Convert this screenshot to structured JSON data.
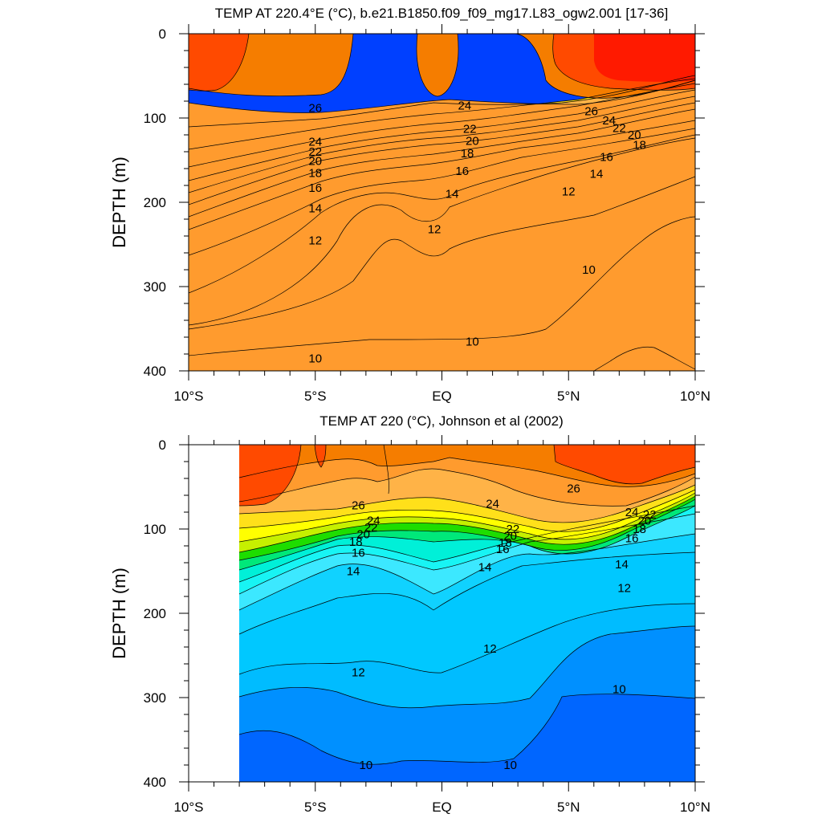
{
  "chart_data": [
    {
      "type": "heatmap",
      "subtype": "filled-contour",
      "title": "TEMP AT 220.4°E (°C), b.e21.B1850.f09_f09_mg17.L83_ogw2.001 [17-36]",
      "ylabel": "DEPTH (m)",
      "x_tick_labels": [
        "10°S",
        "5°S",
        "EQ",
        "5°N",
        "10°N"
      ],
      "x_ticks": [
        -10,
        -5,
        0,
        5,
        10
      ],
      "y_tick_labels": [
        "0",
        "100",
        "200",
        "300",
        "400"
      ],
      "y_ticks": [
        0,
        100,
        200,
        300,
        400
      ],
      "xlim": [
        -10,
        10
      ],
      "ylim": [
        0,
        400
      ],
      "y_inverted": true,
      "contour_interval": 1,
      "colors": {
        "t28": "#ff1a00",
        "t27": "#ff4a00",
        "t26": "#f57d00",
        "t25": "#ff9b2e",
        "t24": "#ffb347",
        "t22": "#ffe01a",
        "t20": "#ffff00",
        "t19": "#c6f000",
        "t18": "#1edd00",
        "t17": "#00e87a",
        "t16": "#00f0d8",
        "t15": "#18f4f4",
        "t14": "#3ce8ff",
        "t13": "#10d2ff",
        "t12": "#00bcff",
        "t11": "#0090ff",
        "t10": "#0066ff",
        "t9": "#0040ff"
      },
      "contour_labels": [
        {
          "text": "26",
          "lat": -5.0,
          "depth": 88
        },
        {
          "text": "24",
          "lat": -5.0,
          "depth": 128
        },
        {
          "text": "22",
          "lat": -5.0,
          "depth": 140
        },
        {
          "text": "20",
          "lat": -5.0,
          "depth": 151
        },
        {
          "text": "18",
          "lat": -5.0,
          "depth": 165
        },
        {
          "text": "16",
          "lat": -5.0,
          "depth": 183
        },
        {
          "text": "14",
          "lat": -5.0,
          "depth": 207
        },
        {
          "text": "12",
          "lat": -5.0,
          "depth": 245
        },
        {
          "text": "10",
          "lat": -5.0,
          "depth": 385
        },
        {
          "text": "24",
          "lat": 0.9,
          "depth": 85
        },
        {
          "text": "22",
          "lat": 1.1,
          "depth": 113
        },
        {
          "text": "20",
          "lat": 1.2,
          "depth": 127
        },
        {
          "text": "18",
          "lat": 1.0,
          "depth": 142
        },
        {
          "text": "16",
          "lat": 0.8,
          "depth": 163
        },
        {
          "text": "14",
          "lat": 0.4,
          "depth": 190
        },
        {
          "text": "12",
          "lat": -0.3,
          "depth": 232
        },
        {
          "text": "10",
          "lat": 1.2,
          "depth": 365
        },
        {
          "text": "26",
          "lat": 5.9,
          "depth": 92
        },
        {
          "text": "24",
          "lat": 6.6,
          "depth": 103
        },
        {
          "text": "22",
          "lat": 7.0,
          "depth": 112
        },
        {
          "text": "20",
          "lat": 7.6,
          "depth": 120
        },
        {
          "text": "18",
          "lat": 7.8,
          "depth": 132
        },
        {
          "text": "16",
          "lat": 6.5,
          "depth": 146
        },
        {
          "text": "14",
          "lat": 6.1,
          "depth": 166
        },
        {
          "text": "12",
          "lat": 5.0,
          "depth": 187
        },
        {
          "text": "10",
          "lat": 5.8,
          "depth": 280
        }
      ]
    },
    {
      "type": "heatmap",
      "subtype": "filled-contour",
      "title": "TEMP AT 220 (°C), Johnson et al (2002)",
      "ylabel": "DEPTH (m)",
      "x_tick_labels": [
        "10°S",
        "5°S",
        "EQ",
        "5°N",
        "10°N"
      ],
      "x_ticks": [
        -10,
        -5,
        0,
        5,
        10
      ],
      "y_tick_labels": [
        "0",
        "100",
        "200",
        "300",
        "400"
      ],
      "y_ticks": [
        0,
        100,
        200,
        300,
        400
      ],
      "xlim": [
        -10,
        10
      ],
      "ylim": [
        0,
        400
      ],
      "y_inverted": true,
      "data_lat_range": [
        -8,
        10
      ],
      "contour_interval": 1,
      "contour_labels": [
        {
          "text": "26",
          "lat": -3.3,
          "depth": 72
        },
        {
          "text": "24",
          "lat": -2.7,
          "depth": 90
        },
        {
          "text": "22",
          "lat": -2.8,
          "depth": 98
        },
        {
          "text": "20",
          "lat": -3.1,
          "depth": 106
        },
        {
          "text": "18",
          "lat": -3.4,
          "depth": 115
        },
        {
          "text": "16",
          "lat": -3.3,
          "depth": 128
        },
        {
          "text": "14",
          "lat": -3.5,
          "depth": 150
        },
        {
          "text": "12",
          "lat": -3.3,
          "depth": 270
        },
        {
          "text": "10",
          "lat": -3.0,
          "depth": 380
        },
        {
          "text": "24",
          "lat": 2.0,
          "depth": 70
        },
        {
          "text": "22",
          "lat": 2.8,
          "depth": 100
        },
        {
          "text": "20",
          "lat": 2.7,
          "depth": 108
        },
        {
          "text": "18",
          "lat": 2.5,
          "depth": 116
        },
        {
          "text": "16",
          "lat": 2.4,
          "depth": 124
        },
        {
          "text": "14",
          "lat": 1.7,
          "depth": 145
        },
        {
          "text": "12",
          "lat": 1.9,
          "depth": 242
        },
        {
          "text": "10",
          "lat": 2.7,
          "depth": 380
        },
        {
          "text": "26",
          "lat": 5.2,
          "depth": 52
        },
        {
          "text": "24",
          "lat": 7.5,
          "depth": 80
        },
        {
          "text": "22",
          "lat": 8.2,
          "depth": 83
        },
        {
          "text": "20",
          "lat": 8.0,
          "depth": 90
        },
        {
          "text": "18",
          "lat": 7.8,
          "depth": 100
        },
        {
          "text": "16",
          "lat": 7.5,
          "depth": 111
        },
        {
          "text": "14",
          "lat": 7.1,
          "depth": 142
        },
        {
          "text": "12",
          "lat": 7.2,
          "depth": 170
        },
        {
          "text": "10",
          "lat": 7.0,
          "depth": 290
        }
      ]
    }
  ]
}
